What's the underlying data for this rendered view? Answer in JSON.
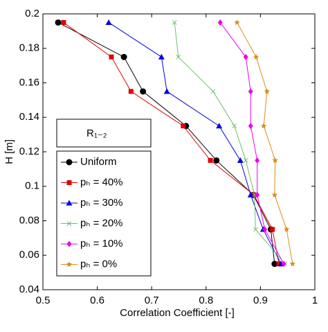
{
  "chart_data": {
    "type": "line",
    "xlabel": "Correlation Coefficient [-]",
    "ylabel": "H [m]",
    "legend_title": "R₁₋₂",
    "xlim": [
      0.5,
      1
    ],
    "xticks": [
      0.5,
      0.6,
      0.7,
      0.8,
      0.9,
      1
    ],
    "ylim": [
      0.04,
      0.2
    ],
    "yticks": [
      0.04,
      0.06,
      0.08,
      0.1,
      0.12,
      0.14,
      0.16,
      0.18,
      0.2
    ],
    "grid": false,
    "legend": "lower-left",
    "y": [
      0.195,
      0.175,
      0.155,
      0.135,
      0.115,
      0.095,
      0.075,
      0.055
    ],
    "series": [
      {
        "name": "Uniform",
        "color": "#000000",
        "marker": "circle",
        "x": [
          0.528,
          0.649,
          0.684,
          0.763,
          0.819,
          0.887,
          0.919,
          0.926
        ]
      },
      {
        "name": "pₕ = 40%",
        "color": "#e00000",
        "marker": "square",
        "x": [
          0.538,
          0.626,
          0.662,
          0.758,
          0.808,
          0.888,
          0.922,
          0.934
        ]
      },
      {
        "name": "pₕ = 30%",
        "color": "#0000e0",
        "marker": "triangle",
        "x": [
          0.621,
          0.718,
          0.728,
          0.824,
          0.863,
          0.882,
          0.905,
          0.938
        ]
      },
      {
        "name": "pₕ = 20%",
        "color": "#6cc06c",
        "marker": "x",
        "x": [
          0.742,
          0.749,
          0.813,
          0.852,
          0.873,
          0.889,
          0.891,
          0.945
        ]
      },
      {
        "name": "pₕ = 10%",
        "color": "#ee00ee",
        "marker": "diamond",
        "x": [
          0.826,
          0.873,
          0.882,
          0.882,
          0.894,
          0.894,
          0.908,
          0.943
        ]
      },
      {
        "name": "pₕ = 0%",
        "color": "#d98c1a",
        "marker": "star",
        "x": [
          0.857,
          0.892,
          0.912,
          0.906,
          0.927,
          0.926,
          0.948,
          0.959
        ]
      }
    ]
  }
}
